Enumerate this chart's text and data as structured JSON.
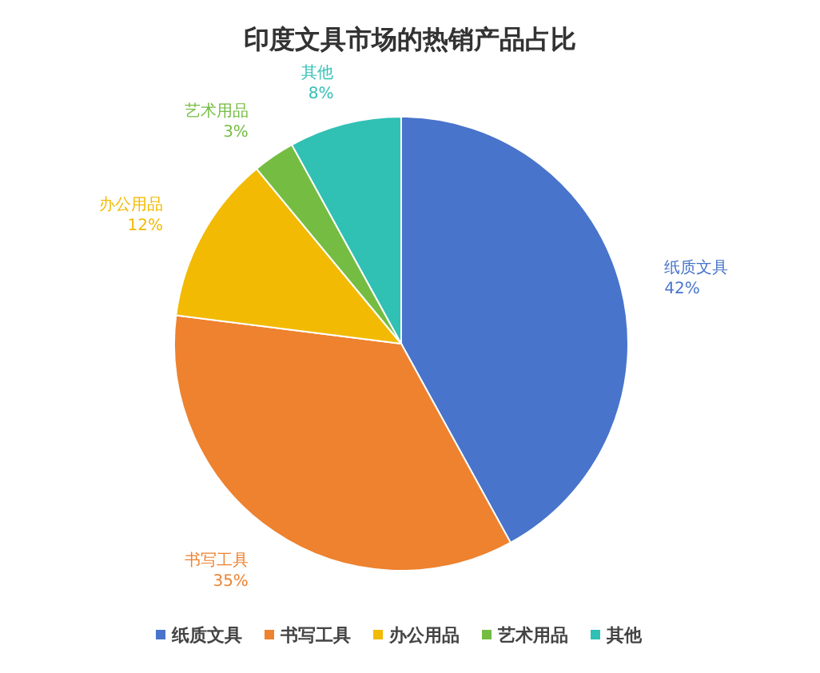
{
  "chart_data": {
    "type": "pie",
    "title": "印度文具市场的热销产品占比",
    "categories": [
      "纸质文具",
      "书写工具",
      "办公用品",
      "艺术用品",
      "其他"
    ],
    "values": [
      42,
      35,
      12,
      3,
      8
    ],
    "value_labels": [
      "42%",
      "35%",
      "12%",
      "3%",
      "8%"
    ],
    "colors": [
      "#4874cb",
      "#ee822f",
      "#f2ba02",
      "#75bd42",
      "#30c0b4"
    ],
    "legend": "bottom"
  }
}
